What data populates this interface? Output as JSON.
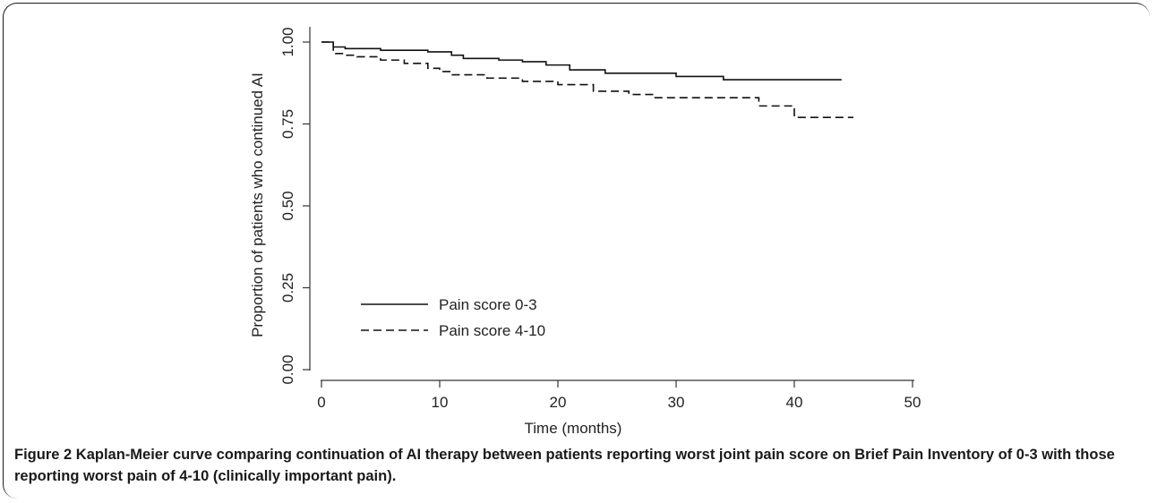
{
  "chart_data": {
    "type": "line",
    "title": "",
    "xlabel": "Time (months)",
    "ylabel": "Proportion of patients who continued AI",
    "xlim": [
      0,
      50
    ],
    "ylim": [
      0,
      1
    ],
    "x_ticks": [
      "0",
      "10",
      "20",
      "30",
      "40",
      "50"
    ],
    "y_ticks": [
      "0.00",
      "0.25",
      "0.50",
      "0.75",
      "1.00"
    ],
    "legend_position": "lower-left",
    "grid": false,
    "series": [
      {
        "name": "Pain score 0-3",
        "style": "solid",
        "x": [
          0,
          1,
          2,
          5,
          9,
          11,
          12,
          15,
          17,
          19,
          21,
          24,
          30,
          34,
          44
        ],
        "y": [
          1.0,
          0.985,
          0.98,
          0.975,
          0.97,
          0.96,
          0.95,
          0.945,
          0.94,
          0.93,
          0.915,
          0.905,
          0.895,
          0.885,
          0.885
        ]
      },
      {
        "name": "Pain score 4-10",
        "style": "dashed",
        "x": [
          0,
          1,
          2,
          3,
          5,
          7,
          9,
          10,
          11,
          14,
          17,
          20,
          23,
          26,
          28,
          37,
          40,
          45
        ],
        "y": [
          1.0,
          0.965,
          0.96,
          0.955,
          0.945,
          0.935,
          0.92,
          0.91,
          0.9,
          0.89,
          0.88,
          0.87,
          0.85,
          0.84,
          0.83,
          0.805,
          0.77,
          0.77
        ]
      }
    ]
  },
  "caption": {
    "label": "Figure 2",
    "text": " Kaplan-Meier curve comparing continuation of AI therapy between patients reporting worst joint pain score on Brief Pain Inventory of 0-3 with those reporting worst pain of 4-10 (clinically important pain)."
  }
}
